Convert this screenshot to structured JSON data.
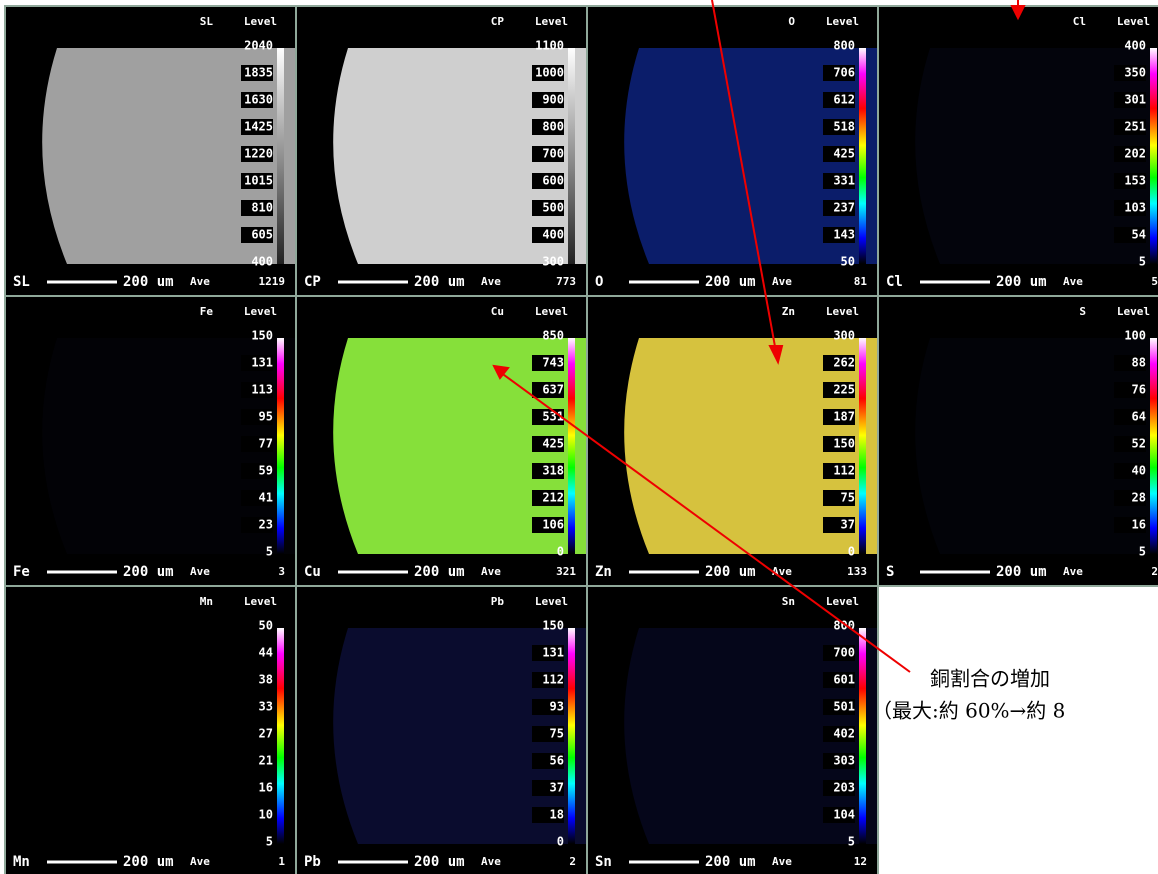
{
  "panels": [
    {
      "element": "SL",
      "header": "Level",
      "levels": [
        2040,
        1835,
        1630,
        1425,
        1220,
        1015,
        810,
        605,
        400
      ],
      "scale": "200 um",
      "ave_label": "Ave",
      "ave": 1219
    },
    {
      "element": "CP",
      "header": "Level",
      "levels": [
        1100,
        1000,
        900,
        800,
        700,
        600,
        500,
        400,
        300
      ],
      "scale": "200 um",
      "ave_label": "Ave",
      "ave": 773
    },
    {
      "element": "O",
      "header": "Level",
      "levels": [
        800,
        706,
        612,
        518,
        425,
        331,
        237,
        143,
        50
      ],
      "scale": "200 um",
      "ave_label": "Ave",
      "ave": 81
    },
    {
      "element": "Cl",
      "header": "Level",
      "levels": [
        400,
        350,
        301,
        251,
        202,
        153,
        103,
        54,
        5
      ],
      "scale": "200 um",
      "ave_label": "Ave",
      "ave": 5
    },
    {
      "element": "Fe",
      "header": "Level",
      "levels": [
        150,
        131,
        113,
        95,
        77,
        59,
        41,
        23,
        5
      ],
      "scale": "200 um",
      "ave_label": "Ave",
      "ave": 3
    },
    {
      "element": "Cu",
      "header": "Level",
      "levels": [
        850,
        743,
        637,
        531,
        425,
        318,
        212,
        106,
        0
      ],
      "scale": "200 um",
      "ave_label": "Ave",
      "ave": 321
    },
    {
      "element": "Zn",
      "header": "Level",
      "levels": [
        300,
        262,
        225,
        187,
        150,
        112,
        75,
        37,
        0
      ],
      "scale": "200 um",
      "ave_label": "Ave",
      "ave": 133
    },
    {
      "element": "S",
      "header": "Level",
      "levels": [
        100,
        88,
        76,
        64,
        52,
        40,
        28,
        16,
        5
      ],
      "scale": "200 um",
      "ave_label": "Ave",
      "ave": 2
    },
    {
      "element": "Mn",
      "header": "Level",
      "levels": [
        50,
        44,
        38,
        33,
        27,
        21,
        16,
        10,
        5
      ],
      "scale": "200 um",
      "ave_label": "Ave",
      "ave": 1
    },
    {
      "element": "Pb",
      "header": "Level",
      "levels": [
        150,
        131,
        112,
        93,
        75,
        56,
        37,
        18,
        0
      ],
      "scale": "200 um",
      "ave_label": "Ave",
      "ave": 2
    },
    {
      "element": "Sn",
      "header": "Level",
      "levels": [
        800,
        700,
        601,
        501,
        402,
        303,
        203,
        104,
        5
      ],
      "scale": "200 um",
      "ave_label": "Ave",
      "ave": 12
    }
  ],
  "annotation": {
    "line1": "銅割合の増加",
    "line2": "（最大:約 60%→約 8"
  }
}
